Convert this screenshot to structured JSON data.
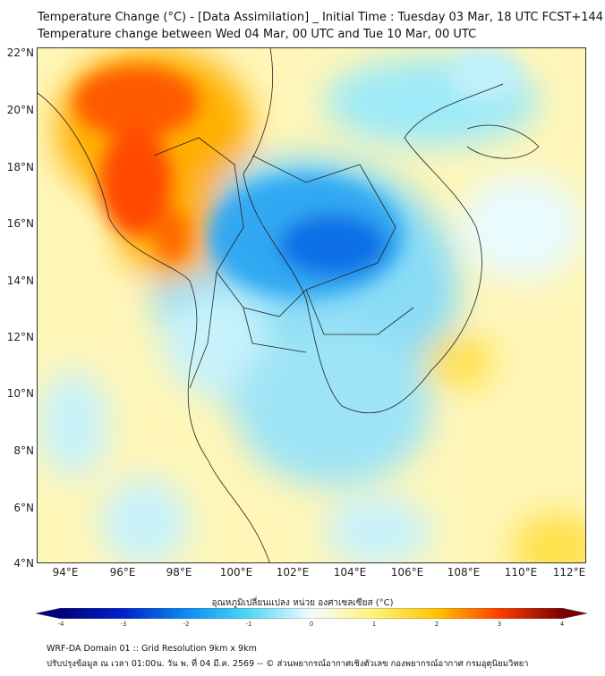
{
  "header": {
    "title_line1": "Temperature Change (°C) - [Data Assimilation] _ Initial Time : Tuesday 03 Mar, 18 UTC FCST+144",
    "title_line2": "Temperature change between Wed 04 Mar, 00 UTC and Tue 10 Mar, 00 UTC"
  },
  "map": {
    "lat_labels": [
      "22°N",
      "20°N",
      "18°N",
      "16°N",
      "14°N",
      "12°N",
      "10°N",
      "8°N",
      "6°N",
      "4°N"
    ],
    "lon_labels": [
      "94°E",
      "96°E",
      "98°E",
      "100°E",
      "102°E",
      "104°E",
      "106°E",
      "108°E",
      "110°E",
      "112°E"
    ]
  },
  "colorbar": {
    "title": "อุณหภูมิเปลี่ยนแปลง หน่วย องศาเซลเซียส (°C)",
    "ticks": [
      "-4",
      "-3",
      "-2",
      "-1",
      "0",
      "1",
      "2",
      "3",
      "4"
    ],
    "range": [
      -4,
      4
    ],
    "colors": [
      "#00007a",
      "#0022cc",
      "#0a8cf0",
      "#4fd8f5",
      "#f4fbff",
      "#fff27a",
      "#ffc400",
      "#ff3c00",
      "#7a0000"
    ]
  },
  "footer": {
    "line1": "WRF-DA Domain 01 :: Grid Resolution 9km x 9km",
    "line2": "ปรับปรุงข้อมูล ณ เวลา 01:00น. วัน พ. ที่ 04 มี.ค. 2569 -- © ส่วนพยากรณ์อากาศเชิงตัวเลข กองพยากรณ์อากาศ กรมอุตุนิยมวิทยา"
  }
}
